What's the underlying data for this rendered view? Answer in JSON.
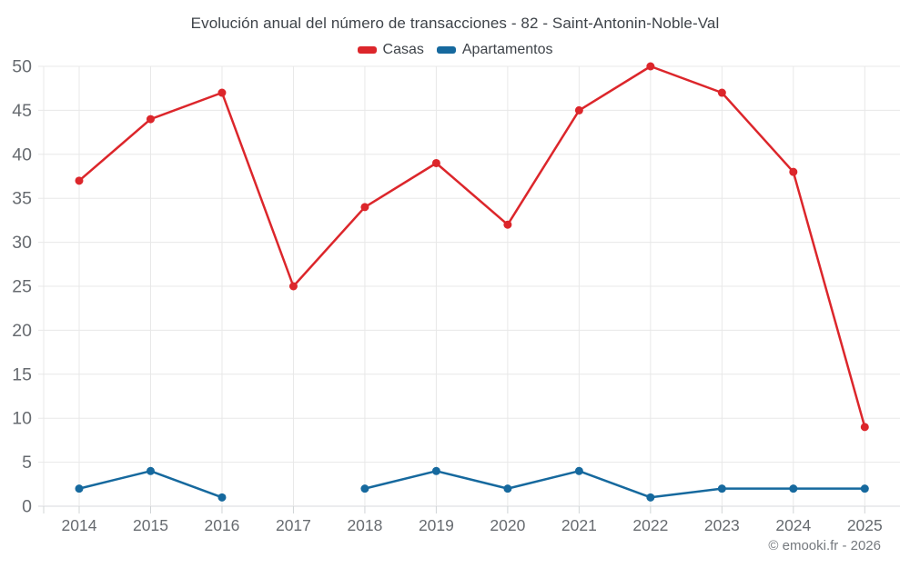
{
  "header": {
    "title": "Evolución anual del número de transacciones - 82 - Saint-Antonin-Noble-Val"
  },
  "footer": {
    "credit": "© emooki.fr - 2026"
  },
  "style": {
    "grid_color": "#e8e8e8",
    "axis_line_color": "#d7dadc",
    "tick_color": "#d0d4d6",
    "axis_label_color": "#676b70",
    "title_color": "#3e4349"
  },
  "chart_data": {
    "type": "line",
    "title": "Evolución anual del número de transacciones - 82 - Saint-Antonin-Noble-Val",
    "categories": [
      "2014",
      "2015",
      "2016",
      "2017",
      "2018",
      "2019",
      "2020",
      "2021",
      "2022",
      "2023",
      "2024",
      "2025"
    ],
    "series": [
      {
        "name": "Casas",
        "color": "#dc262b",
        "values": [
          37,
          44,
          47,
          25,
          34,
          39,
          32,
          45,
          50,
          47,
          38,
          9
        ]
      },
      {
        "name": "Apartamentos",
        "color": "#16699e",
        "values": [
          2,
          4,
          1,
          null,
          2,
          4,
          2,
          4,
          1,
          2,
          2,
          2
        ]
      }
    ],
    "xlabel": "",
    "ylabel": "",
    "ylim": [
      0,
      50
    ],
    "yticks": [
      0,
      5,
      10,
      15,
      20,
      25,
      30,
      35,
      40,
      45,
      50
    ],
    "grid": true,
    "legend_position": "top",
    "markers": true
  }
}
